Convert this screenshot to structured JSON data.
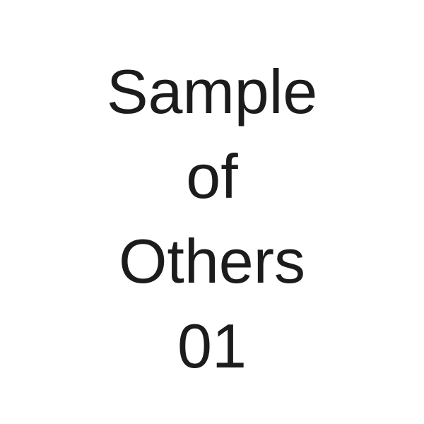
{
  "image": {
    "lines": [
      "Sample",
      "of",
      "Others",
      "01"
    ],
    "text_color": "#1c1c1c",
    "background_color": "#ffffff"
  }
}
